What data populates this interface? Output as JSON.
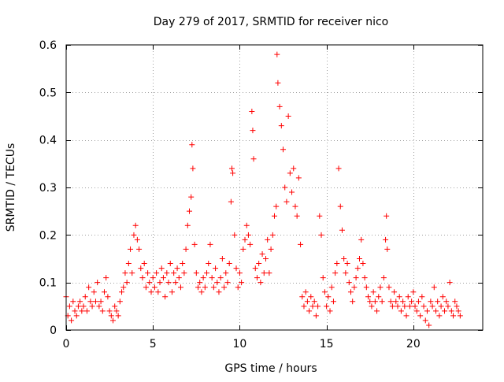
{
  "chart_data": {
    "type": "scatter",
    "title": "Day 279 of 2017, SRMTID for receiver nico",
    "xlabel": "GPS time / hours",
    "ylabel": "SRMTID / TECUs",
    "xlim": [
      0,
      24
    ],
    "ylim": [
      0,
      0.6
    ],
    "xticks": [
      0,
      5,
      10,
      15,
      20
    ],
    "xtick_labels": [
      "0",
      "5",
      "10",
      "15",
      "20"
    ],
    "yticks": [
      0,
      0.1,
      0.2,
      0.3,
      0.4,
      0.5,
      0.6
    ],
    "ytick_labels": [
      "0",
      "0.1",
      "0.2",
      "0.3",
      "0.4",
      "0.5",
      "0.6"
    ],
    "grid": true,
    "marker": "+",
    "marker_color": "#ff0000",
    "series": [
      {
        "name": "SRMTID",
        "points": [
          [
            0.0,
            0.07
          ],
          [
            0.1,
            0.03
          ],
          [
            0.2,
            0.05
          ],
          [
            0.3,
            0.02
          ],
          [
            0.4,
            0.06
          ],
          [
            0.5,
            0.04
          ],
          [
            0.6,
            0.03
          ],
          [
            0.7,
            0.05
          ],
          [
            0.8,
            0.06
          ],
          [
            0.9,
            0.04
          ],
          [
            1.0,
            0.05
          ],
          [
            1.1,
            0.07
          ],
          [
            1.2,
            0.04
          ],
          [
            1.3,
            0.09
          ],
          [
            1.4,
            0.06
          ],
          [
            1.5,
            0.05
          ],
          [
            1.6,
            0.08
          ],
          [
            1.7,
            0.06
          ],
          [
            1.8,
            0.1
          ],
          [
            1.9,
            0.05
          ],
          [
            2.0,
            0.06
          ],
          [
            2.1,
            0.04
          ],
          [
            2.2,
            0.08
          ],
          [
            2.3,
            0.11
          ],
          [
            2.4,
            0.07
          ],
          [
            2.5,
            0.04
          ],
          [
            2.6,
            0.03
          ],
          [
            2.7,
            0.02
          ],
          [
            2.8,
            0.05
          ],
          [
            2.9,
            0.04
          ],
          [
            3.0,
            0.03
          ],
          [
            3.1,
            0.06
          ],
          [
            3.2,
            0.08
          ],
          [
            3.3,
            0.09
          ],
          [
            3.4,
            0.12
          ],
          [
            3.5,
            0.1
          ],
          [
            3.6,
            0.14
          ],
          [
            3.7,
            0.17
          ],
          [
            3.8,
            0.12
          ],
          [
            3.9,
            0.2
          ],
          [
            4.0,
            0.22
          ],
          [
            4.1,
            0.19
          ],
          [
            4.2,
            0.17
          ],
          [
            4.3,
            0.13
          ],
          [
            4.4,
            0.11
          ],
          [
            4.5,
            0.14
          ],
          [
            4.6,
            0.09
          ],
          [
            4.7,
            0.12
          ],
          [
            4.8,
            0.1
          ],
          [
            4.9,
            0.08
          ],
          [
            5.0,
            0.11
          ],
          [
            5.1,
            0.09
          ],
          [
            5.2,
            0.12
          ],
          [
            5.3,
            0.08
          ],
          [
            5.4,
            0.1
          ],
          [
            5.5,
            0.13
          ],
          [
            5.6,
            0.11
          ],
          [
            5.7,
            0.07
          ],
          [
            5.8,
            0.12
          ],
          [
            5.9,
            0.1
          ],
          [
            6.0,
            0.14
          ],
          [
            6.1,
            0.08
          ],
          [
            6.2,
            0.12
          ],
          [
            6.3,
            0.1
          ],
          [
            6.4,
            0.13
          ],
          [
            6.5,
            0.11
          ],
          [
            6.6,
            0.09
          ],
          [
            6.7,
            0.14
          ],
          [
            6.8,
            0.12
          ],
          [
            6.9,
            0.17
          ],
          [
            7.0,
            0.22
          ],
          [
            7.1,
            0.25
          ],
          [
            7.2,
            0.28
          ],
          [
            7.25,
            0.39
          ],
          [
            7.3,
            0.34
          ],
          [
            7.4,
            0.18
          ],
          [
            7.5,
            0.12
          ],
          [
            7.6,
            0.09
          ],
          [
            7.7,
            0.1
          ],
          [
            7.8,
            0.08
          ],
          [
            7.9,
            0.11
          ],
          [
            8.0,
            0.09
          ],
          [
            8.1,
            0.12
          ],
          [
            8.2,
            0.14
          ],
          [
            8.3,
            0.18
          ],
          [
            8.4,
            0.11
          ],
          [
            8.5,
            0.09
          ],
          [
            8.6,
            0.13
          ],
          [
            8.7,
            0.1
          ],
          [
            8.8,
            0.08
          ],
          [
            8.9,
            0.11
          ],
          [
            9.0,
            0.15
          ],
          [
            9.1,
            0.09
          ],
          [
            9.2,
            0.12
          ],
          [
            9.3,
            0.1
          ],
          [
            9.4,
            0.14
          ],
          [
            9.5,
            0.27
          ],
          [
            9.55,
            0.34
          ],
          [
            9.6,
            0.33
          ],
          [
            9.7,
            0.2
          ],
          [
            9.8,
            0.13
          ],
          [
            9.9,
            0.09
          ],
          [
            10.0,
            0.12
          ],
          [
            10.1,
            0.1
          ],
          [
            10.2,
            0.17
          ],
          [
            10.3,
            0.19
          ],
          [
            10.4,
            0.22
          ],
          [
            10.5,
            0.2
          ],
          [
            10.6,
            0.18
          ],
          [
            10.7,
            0.46
          ],
          [
            10.75,
            0.42
          ],
          [
            10.8,
            0.36
          ],
          [
            10.9,
            0.13
          ],
          [
            11.0,
            0.11
          ],
          [
            11.1,
            0.14
          ],
          [
            11.2,
            0.1
          ],
          [
            11.3,
            0.16
          ],
          [
            11.4,
            0.12
          ],
          [
            11.5,
            0.15
          ],
          [
            11.6,
            0.19
          ],
          [
            11.7,
            0.12
          ],
          [
            11.8,
            0.17
          ],
          [
            11.9,
            0.2
          ],
          [
            12.0,
            0.24
          ],
          [
            12.1,
            0.26
          ],
          [
            12.15,
            0.58
          ],
          [
            12.2,
            0.52
          ],
          [
            12.3,
            0.47
          ],
          [
            12.4,
            0.43
          ],
          [
            12.5,
            0.38
          ],
          [
            12.6,
            0.3
          ],
          [
            12.7,
            0.27
          ],
          [
            12.8,
            0.45
          ],
          [
            12.9,
            0.33
          ],
          [
            13.0,
            0.29
          ],
          [
            13.1,
            0.34
          ],
          [
            13.2,
            0.26
          ],
          [
            13.3,
            0.24
          ],
          [
            13.4,
            0.32
          ],
          [
            13.5,
            0.18
          ],
          [
            13.6,
            0.07
          ],
          [
            13.7,
            0.05
          ],
          [
            13.8,
            0.08
          ],
          [
            13.9,
            0.06
          ],
          [
            14.0,
            0.04
          ],
          [
            14.1,
            0.07
          ],
          [
            14.2,
            0.05
          ],
          [
            14.3,
            0.06
          ],
          [
            14.4,
            0.03
          ],
          [
            14.5,
            0.05
          ],
          [
            14.6,
            0.24
          ],
          [
            14.7,
            0.2
          ],
          [
            14.8,
            0.11
          ],
          [
            14.9,
            0.08
          ],
          [
            15.0,
            0.05
          ],
          [
            15.1,
            0.07
          ],
          [
            15.2,
            0.04
          ],
          [
            15.3,
            0.09
          ],
          [
            15.4,
            0.06
          ],
          [
            15.5,
            0.12
          ],
          [
            15.6,
            0.14
          ],
          [
            15.7,
            0.34
          ],
          [
            15.8,
            0.26
          ],
          [
            15.9,
            0.21
          ],
          [
            16.0,
            0.15
          ],
          [
            16.1,
            0.12
          ],
          [
            16.2,
            0.14
          ],
          [
            16.3,
            0.1
          ],
          [
            16.4,
            0.08
          ],
          [
            16.5,
            0.06
          ],
          [
            16.6,
            0.09
          ],
          [
            16.7,
            0.11
          ],
          [
            16.8,
            0.13
          ],
          [
            16.9,
            0.15
          ],
          [
            17.0,
            0.19
          ],
          [
            17.1,
            0.14
          ],
          [
            17.2,
            0.11
          ],
          [
            17.3,
            0.09
          ],
          [
            17.4,
            0.07
          ],
          [
            17.5,
            0.06
          ],
          [
            17.6,
            0.05
          ],
          [
            17.7,
            0.08
          ],
          [
            17.8,
            0.06
          ],
          [
            17.9,
            0.04
          ],
          [
            18.0,
            0.07
          ],
          [
            18.1,
            0.09
          ],
          [
            18.2,
            0.06
          ],
          [
            18.3,
            0.11
          ],
          [
            18.4,
            0.19
          ],
          [
            18.45,
            0.24
          ],
          [
            18.5,
            0.17
          ],
          [
            18.6,
            0.09
          ],
          [
            18.7,
            0.06
          ],
          [
            18.8,
            0.05
          ],
          [
            18.9,
            0.08
          ],
          [
            19.0,
            0.06
          ],
          [
            19.1,
            0.05
          ],
          [
            19.2,
            0.07
          ],
          [
            19.3,
            0.04
          ],
          [
            19.4,
            0.06
          ],
          [
            19.5,
            0.05
          ],
          [
            19.6,
            0.03
          ],
          [
            19.7,
            0.07
          ],
          [
            19.8,
            0.05
          ],
          [
            19.9,
            0.06
          ],
          [
            20.0,
            0.08
          ],
          [
            20.1,
            0.05
          ],
          [
            20.2,
            0.04
          ],
          [
            20.3,
            0.06
          ],
          [
            20.4,
            0.03
          ],
          [
            20.5,
            0.07
          ],
          [
            20.6,
            0.05
          ],
          [
            20.7,
            0.02
          ],
          [
            20.8,
            0.04
          ],
          [
            20.9,
            0.01
          ],
          [
            21.0,
            0.06
          ],
          [
            21.1,
            0.05
          ],
          [
            21.2,
            0.09
          ],
          [
            21.3,
            0.04
          ],
          [
            21.4,
            0.06
          ],
          [
            21.5,
            0.03
          ],
          [
            21.6,
            0.05
          ],
          [
            21.7,
            0.07
          ],
          [
            21.8,
            0.04
          ],
          [
            21.9,
            0.06
          ],
          [
            22.0,
            0.05
          ],
          [
            22.1,
            0.1
          ],
          [
            22.2,
            0.04
          ],
          [
            22.3,
            0.03
          ],
          [
            22.4,
            0.06
          ],
          [
            22.5,
            0.05
          ],
          [
            22.6,
            0.04
          ],
          [
            22.7,
            0.03
          ]
        ]
      }
    ]
  }
}
